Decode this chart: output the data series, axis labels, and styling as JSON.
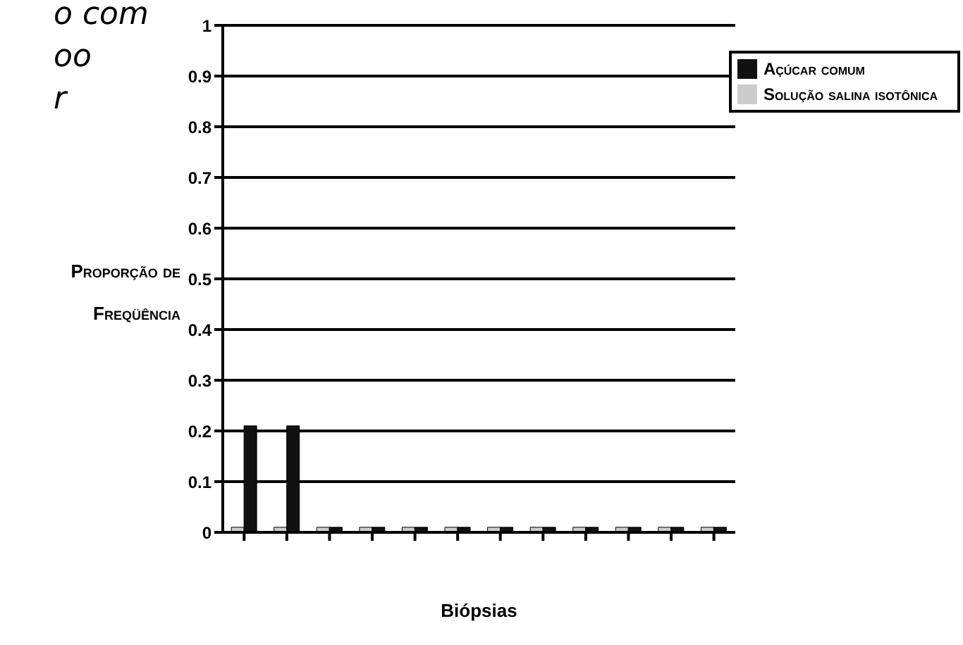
{
  "chart_data": {
    "type": "bar",
    "xlabel": "Biópsias",
    "ylabel": "Proporção de Freqüência",
    "categories": [
      null,
      null,
      null,
      null,
      null,
      null,
      null,
      null,
      null,
      null,
      null,
      null
    ],
    "series": [
      {
        "name": "Solução salina isotônica",
        "color": "#cccccc",
        "values": [
          0.01,
          0.01,
          0.01,
          0.01,
          0.01,
          0.01,
          0.01,
          0.01,
          0.01,
          0.01,
          0.01,
          0.01
        ]
      },
      {
        "name": "Açúcar comum",
        "color": "#111111",
        "values": [
          0.21,
          0.21,
          0.01,
          0.01,
          0.01,
          0.01,
          0.01,
          0.01,
          0.01,
          0.01,
          0.01,
          0.01
        ]
      }
    ],
    "ylim": [
      0,
      1
    ],
    "yticks": [
      0,
      0.1,
      0.2,
      0.3,
      0.4,
      0.5,
      0.6,
      0.7,
      0.8,
      0.9,
      1
    ],
    "grid": "y",
    "legend": "top right",
    "annotations": [
      "o com",
      "oo",
      "r"
    ]
  }
}
